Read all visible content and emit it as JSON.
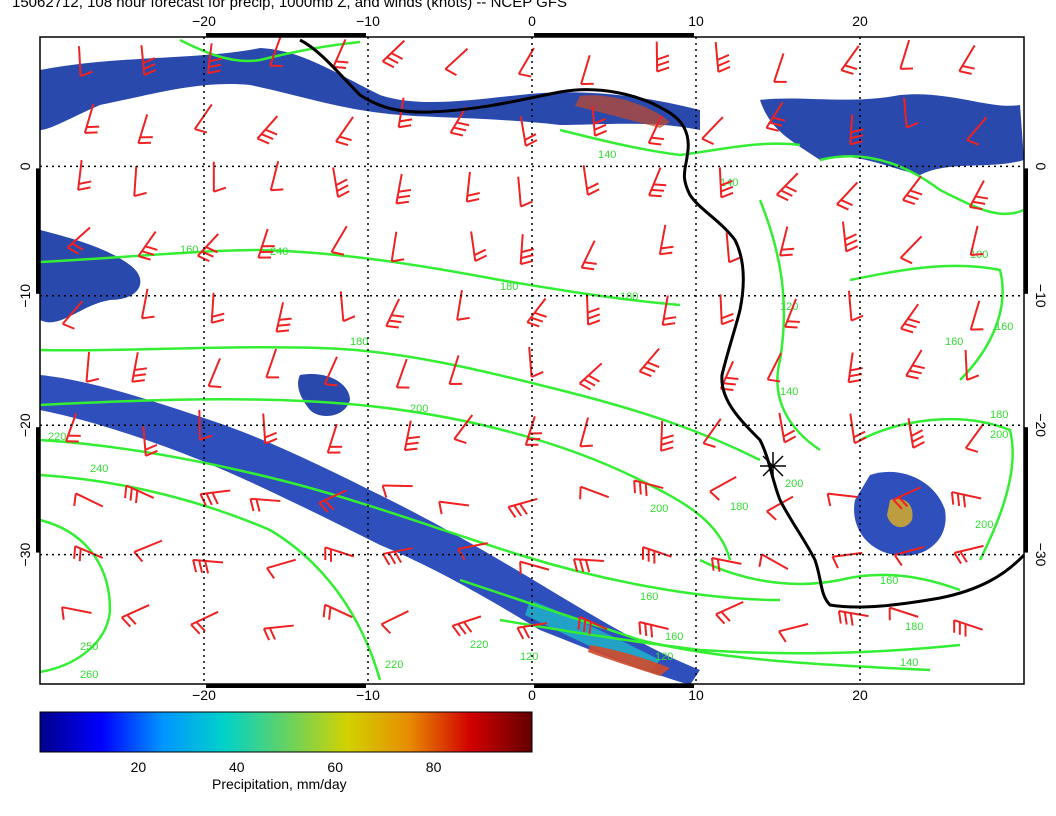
{
  "title": "15062712, 108 hour forecast for precip, 1000mb Z, and winds (knots) -- NCEP GFS",
  "map": {
    "lon_ticks": [
      "−20",
      "−10",
      "0",
      "10",
      "20"
    ],
    "lat_ticks": [
      "0",
      "−10",
      "−20",
      "−30"
    ],
    "lon_values": [
      -20,
      -10,
      0,
      10,
      20
    ],
    "lat_values": [
      0,
      -10,
      -20,
      -30
    ],
    "lon_range": [
      -30,
      30
    ],
    "lat_range": [
      -40,
      10
    ],
    "grid": true,
    "colors": {
      "precip_dark": "#1a237e",
      "precip_mid": "#2f6fd6",
      "contour": "#33ee33",
      "wind_barb": "#ee2222",
      "coastline": "#000000"
    },
    "contour_labels": [
      "140",
      "140",
      "160",
      "180",
      "180",
      "200",
      "200",
      "200",
      "220",
      "240",
      "220",
      "180",
      "160",
      "140",
      "120",
      "100",
      "160",
      "140",
      "180",
      "200",
      "200",
      "160",
      "180",
      "160",
      "120",
      "220",
      "260",
      "250",
      "240",
      "180",
      "160",
      "120"
    ],
    "marker_symbol": "asterisk"
  },
  "colorbar": {
    "ticks": [
      "20",
      "40",
      "60",
      "80"
    ],
    "tick_values": [
      20,
      40,
      60,
      80
    ],
    "range": [
      0,
      100
    ],
    "colors": [
      "#00008b",
      "#0000ff",
      "#0096ff",
      "#00d2c8",
      "#64d264",
      "#d2d200",
      "#e68c00",
      "#d20000",
      "#640000"
    ],
    "label": "Precipitation, mm/day"
  }
}
